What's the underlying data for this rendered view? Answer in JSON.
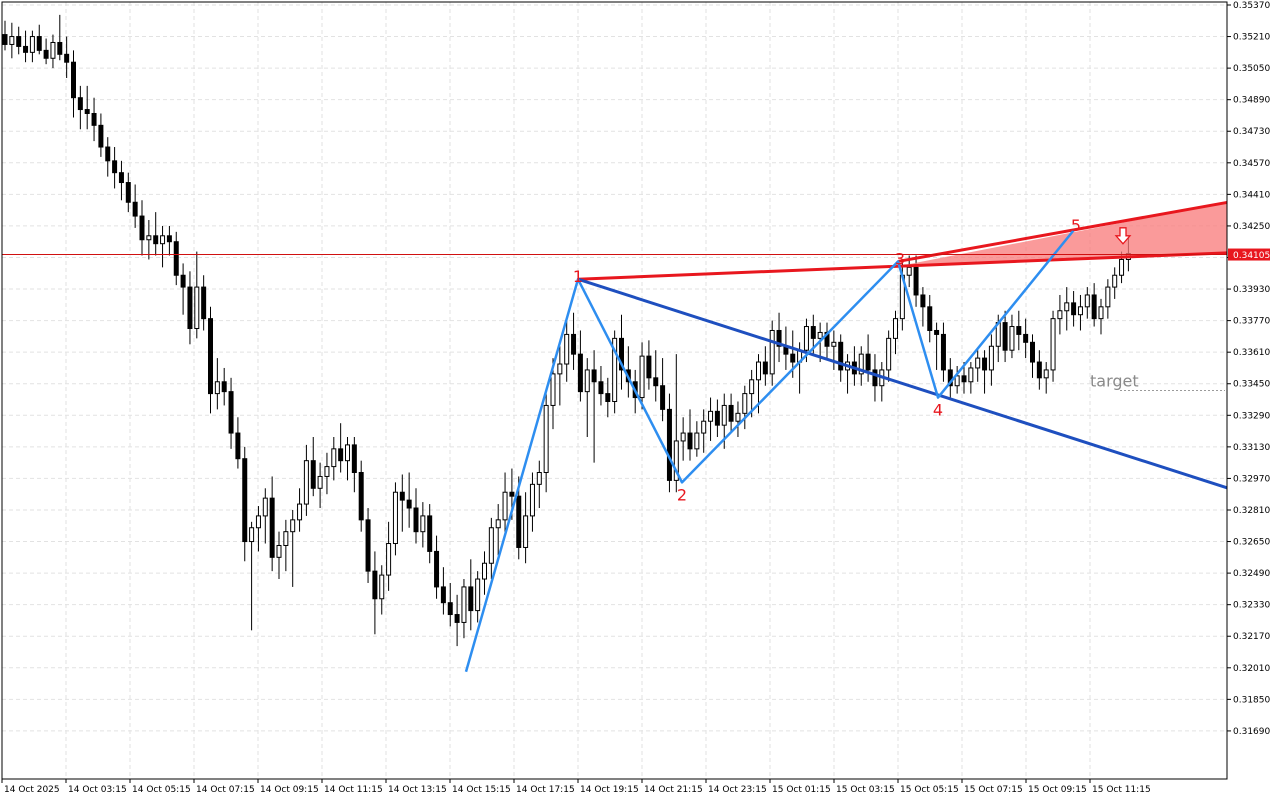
{
  "chart_data": {
    "type": "candlestick",
    "ylim": [
      0.3161,
      0.3537
    ],
    "y_ticks": [
      "0.35370",
      "0.35210",
      "0.35050",
      "0.34890",
      "0.34730",
      "0.34570",
      "0.34410",
      "0.34250",
      "0.34090",
      "0.33930",
      "0.33770",
      "0.33610",
      "0.33450",
      "0.33290",
      "0.33130",
      "0.32970",
      "0.32810",
      "0.32650",
      "0.32490",
      "0.32330",
      "0.32170",
      "0.32010",
      "0.31850",
      "0.31690"
    ],
    "x_ticks": [
      "14 Oct 2025",
      "14 Oct 03:15",
      "14 Oct 05:15",
      "14 Oct 07:15",
      "14 Oct 09:15",
      "14 Oct 11:15",
      "14 Oct 13:15",
      "14 Oct 15:15",
      "14 Oct 17:15",
      "14 Oct 19:15",
      "14 Oct 21:15",
      "14 Oct 23:15",
      "15 Oct 01:15",
      "15 Oct 03:15",
      "15 Oct 05:15",
      "15 Oct 07:15",
      "15 Oct 09:15",
      "15 Oct 11:15"
    ],
    "current_price": "0.34105",
    "grid": true,
    "pattern_points": [
      {
        "label": "",
        "x": "14 Oct 15:45",
        "y": 0.3199
      },
      {
        "label": "1",
        "x": "14 Oct 19:15",
        "y": 0.3398
      },
      {
        "label": "2",
        "x": "14 Oct 22:30",
        "y": 0.3295
      },
      {
        "label": "3",
        "x": "15 Oct 05:15",
        "y": 0.3407
      },
      {
        "label": "4",
        "x": "15 Oct 06:30",
        "y": 0.3338
      },
      {
        "label": "5",
        "x": "15 Oct 10:45",
        "y": 0.3423
      }
    ],
    "red_line": [
      {
        "x": "14 Oct 19:15",
        "y": 0.3398
      },
      {
        "x": "15 Oct 15:00",
        "y": 0.3411
      }
    ],
    "blue_line": [
      {
        "x": "14 Oct 19:15",
        "y": 0.3398
      },
      {
        "x": "15 Oct 15:00",
        "y": 0.3295
      }
    ],
    "target_label": "target",
    "target_level": 0.3338,
    "arrow": "down",
    "colors": {
      "zigzag": "#2e8ef0",
      "blue_line": "#1e4fbf",
      "red_line": "#e8171e",
      "red_zone": "#f87878",
      "price_line": "#d01010",
      "price_badge": "#e8171e",
      "label_text": "#e8171e",
      "target_text": "#8a8a8a",
      "grid": "#e2e2e2",
      "bull_fill": "#ffffff",
      "bear_fill": "#000000"
    },
    "candles": [
      [
        0.3522,
        0.3529,
        0.3514,
        0.3517
      ],
      [
        0.3517,
        0.3528,
        0.351,
        0.3521
      ],
      [
        0.3521,
        0.3526,
        0.3512,
        0.3516
      ],
      [
        0.3516,
        0.3524,
        0.3508,
        0.3513
      ],
      [
        0.3513,
        0.3524,
        0.3508,
        0.3521
      ],
      [
        0.3521,
        0.3527,
        0.3512,
        0.3514
      ],
      [
        0.3514,
        0.352,
        0.3507,
        0.351
      ],
      [
        0.351,
        0.3522,
        0.3505,
        0.3518
      ],
      [
        0.3518,
        0.3532,
        0.3509,
        0.3512
      ],
      [
        0.3512,
        0.3521,
        0.35,
        0.3508
      ],
      [
        0.3508,
        0.3514,
        0.348,
        0.349
      ],
      [
        0.349,
        0.3496,
        0.3474,
        0.3484
      ],
      [
        0.3484,
        0.3496,
        0.3474,
        0.3482
      ],
      [
        0.3482,
        0.349,
        0.3468,
        0.3476
      ],
      [
        0.3476,
        0.3482,
        0.346,
        0.3465
      ],
      [
        0.3465,
        0.347,
        0.345,
        0.3458
      ],
      [
        0.3458,
        0.3465,
        0.3444,
        0.3452
      ],
      [
        0.3452,
        0.3458,
        0.3438,
        0.3447
      ],
      [
        0.3447,
        0.3452,
        0.3432,
        0.3437
      ],
      [
        0.3437,
        0.3446,
        0.3424,
        0.343
      ],
      [
        0.343,
        0.3438,
        0.341,
        0.3418
      ],
      [
        0.3418,
        0.3428,
        0.3408,
        0.342
      ],
      [
        0.342,
        0.3432,
        0.341,
        0.3416
      ],
      [
        0.3416,
        0.3425,
        0.3404,
        0.342
      ],
      [
        0.342,
        0.3425,
        0.341,
        0.3417
      ],
      [
        0.3417,
        0.3422,
        0.3395,
        0.34
      ],
      [
        0.34,
        0.3406,
        0.338,
        0.3394
      ],
      [
        0.3394,
        0.3402,
        0.3365,
        0.3373
      ],
      [
        0.3373,
        0.3412,
        0.3368,
        0.3394
      ],
      [
        0.3394,
        0.34,
        0.3372,
        0.3378
      ],
      [
        0.3378,
        0.3384,
        0.333,
        0.334
      ],
      [
        0.334,
        0.3358,
        0.3332,
        0.3346
      ],
      [
        0.3346,
        0.3353,
        0.3334,
        0.3341
      ],
      [
        0.3341,
        0.3348,
        0.3312,
        0.332
      ],
      [
        0.332,
        0.3328,
        0.3302,
        0.3307
      ],
      [
        0.3307,
        0.3313,
        0.3255,
        0.3265
      ],
      [
        0.3265,
        0.3275,
        0.322,
        0.3272
      ],
      [
        0.3272,
        0.3283,
        0.326,
        0.3278
      ],
      [
        0.3278,
        0.3292,
        0.3264,
        0.3287
      ],
      [
        0.3287,
        0.3298,
        0.325,
        0.3257
      ],
      [
        0.3257,
        0.327,
        0.3246,
        0.3263
      ],
      [
        0.3263,
        0.3276,
        0.325,
        0.327
      ],
      [
        0.327,
        0.3281,
        0.3242,
        0.3276
      ],
      [
        0.3276,
        0.3292,
        0.327,
        0.3284
      ],
      [
        0.3284,
        0.3314,
        0.3278,
        0.3306
      ],
      [
        0.3306,
        0.3318,
        0.3288,
        0.3292
      ],
      [
        0.3292,
        0.3305,
        0.3282,
        0.3298
      ],
      [
        0.3298,
        0.331,
        0.3289,
        0.3303
      ],
      [
        0.3303,
        0.3318,
        0.3296,
        0.3312
      ],
      [
        0.3312,
        0.3325,
        0.33,
        0.3306
      ],
      [
        0.3306,
        0.3318,
        0.3296,
        0.3314
      ],
      [
        0.3314,
        0.3318,
        0.329,
        0.33
      ],
      [
        0.33,
        0.3306,
        0.327,
        0.3276
      ],
      [
        0.3276,
        0.3282,
        0.3244,
        0.325
      ],
      [
        0.325,
        0.326,
        0.3218,
        0.3236
      ],
      [
        0.3236,
        0.3253,
        0.3228,
        0.3248
      ],
      [
        0.3248,
        0.3275,
        0.324,
        0.3264
      ],
      [
        0.3264,
        0.3295,
        0.3258,
        0.329
      ],
      [
        0.329,
        0.3299,
        0.327,
        0.3286
      ],
      [
        0.3286,
        0.33,
        0.3272,
        0.3282
      ],
      [
        0.3282,
        0.3292,
        0.3264,
        0.327
      ],
      [
        0.327,
        0.3285,
        0.3262,
        0.3278
      ],
      [
        0.3278,
        0.3284,
        0.3254,
        0.326
      ],
      [
        0.326,
        0.3268,
        0.3236,
        0.3242
      ],
      [
        0.3242,
        0.3252,
        0.3228,
        0.3234
      ],
      [
        0.3234,
        0.3244,
        0.3222,
        0.3228
      ],
      [
        0.3228,
        0.3238,
        0.3212,
        0.3224
      ],
      [
        0.3224,
        0.3246,
        0.3216,
        0.3242
      ],
      [
        0.3242,
        0.3256,
        0.322,
        0.323
      ],
      [
        0.323,
        0.325,
        0.3224,
        0.3246
      ],
      [
        0.3246,
        0.326,
        0.3238,
        0.3254
      ],
      [
        0.3254,
        0.3277,
        0.3246,
        0.3272
      ],
      [
        0.3272,
        0.3284,
        0.3258,
        0.3276
      ],
      [
        0.3276,
        0.33,
        0.3268,
        0.329
      ],
      [
        0.329,
        0.3302,
        0.3276,
        0.3288
      ],
      [
        0.3288,
        0.3298,
        0.3256,
        0.3262
      ],
      [
        0.3262,
        0.329,
        0.3254,
        0.3278
      ],
      [
        0.3278,
        0.33,
        0.327,
        0.3294
      ],
      [
        0.3294,
        0.3306,
        0.3282,
        0.33
      ],
      [
        0.33,
        0.334,
        0.329,
        0.3334
      ],
      [
        0.3334,
        0.3358,
        0.3322,
        0.335
      ],
      [
        0.335,
        0.3364,
        0.3334,
        0.3355
      ],
      [
        0.3355,
        0.3377,
        0.3346,
        0.337
      ],
      [
        0.337,
        0.3381,
        0.3352,
        0.336
      ],
      [
        0.336,
        0.3372,
        0.3336,
        0.3341
      ],
      [
        0.3341,
        0.3358,
        0.3318,
        0.3352
      ],
      [
        0.3352,
        0.3362,
        0.3305,
        0.3346
      ],
      [
        0.3346,
        0.3354,
        0.3334,
        0.334
      ],
      [
        0.334,
        0.3348,
        0.3328,
        0.3336
      ],
      [
        0.3336,
        0.3372,
        0.333,
        0.3368
      ],
      [
        0.3368,
        0.338,
        0.3342,
        0.3352
      ],
      [
        0.3352,
        0.3364,
        0.3338,
        0.3346
      ],
      [
        0.3346,
        0.3352,
        0.333,
        0.3338
      ],
      [
        0.3338,
        0.3366,
        0.3332,
        0.3359
      ],
      [
        0.3359,
        0.3367,
        0.3342,
        0.3348
      ],
      [
        0.3348,
        0.3362,
        0.3336,
        0.3344
      ],
      [
        0.3344,
        0.3358,
        0.3326,
        0.3332
      ],
      [
        0.3332,
        0.334,
        0.329,
        0.3296
      ],
      [
        0.3296,
        0.336,
        0.329,
        0.3316
      ],
      [
        0.3316,
        0.3328,
        0.3306,
        0.332
      ],
      [
        0.332,
        0.3332,
        0.3306,
        0.3312
      ],
      [
        0.3312,
        0.3326,
        0.3308,
        0.332
      ],
      [
        0.332,
        0.3332,
        0.331,
        0.3326
      ],
      [
        0.3326,
        0.3338,
        0.3316,
        0.3331
      ],
      [
        0.3331,
        0.3337,
        0.3318,
        0.3324
      ],
      [
        0.3324,
        0.334,
        0.3312,
        0.3334
      ],
      [
        0.3334,
        0.334,
        0.332,
        0.3326
      ],
      [
        0.3326,
        0.3336,
        0.3318,
        0.333
      ],
      [
        0.333,
        0.3344,
        0.3322,
        0.334
      ],
      [
        0.334,
        0.3352,
        0.3328,
        0.3347
      ],
      [
        0.3347,
        0.336,
        0.333,
        0.3356
      ],
      [
        0.3356,
        0.3364,
        0.3344,
        0.335
      ],
      [
        0.335,
        0.3377,
        0.3344,
        0.3372
      ],
      [
        0.3372,
        0.3381,
        0.3356,
        0.3364
      ],
      [
        0.3364,
        0.3374,
        0.3352,
        0.336
      ],
      [
        0.336,
        0.3372,
        0.3348,
        0.3356
      ],
      [
        0.3356,
        0.3366,
        0.334,
        0.3362
      ],
      [
        0.3362,
        0.3378,
        0.3356,
        0.3374
      ],
      [
        0.3374,
        0.338,
        0.336,
        0.3368
      ],
      [
        0.3368,
        0.3376,
        0.3356,
        0.3371
      ],
      [
        0.3371,
        0.3376,
        0.3358,
        0.3364
      ],
      [
        0.3364,
        0.3372,
        0.3352,
        0.3366
      ],
      [
        0.3366,
        0.337,
        0.3346,
        0.3352
      ],
      [
        0.3352,
        0.336,
        0.334,
        0.3356
      ],
      [
        0.3356,
        0.3364,
        0.3344,
        0.335
      ],
      [
        0.335,
        0.3364,
        0.3344,
        0.336
      ],
      [
        0.336,
        0.337,
        0.3346,
        0.3352
      ],
      [
        0.3352,
        0.336,
        0.3336,
        0.3344
      ],
      [
        0.3344,
        0.3356,
        0.3336,
        0.3352
      ],
      [
        0.3352,
        0.3372,
        0.3346,
        0.3368
      ],
      [
        0.3368,
        0.3382,
        0.336,
        0.3378
      ],
      [
        0.3378,
        0.3408,
        0.3372,
        0.34
      ],
      [
        0.34,
        0.341,
        0.3394,
        0.3404
      ],
      [
        0.3404,
        0.341,
        0.3384,
        0.339
      ],
      [
        0.339,
        0.3394,
        0.3374,
        0.3384
      ],
      [
        0.3384,
        0.339,
        0.3366,
        0.3372
      ],
      [
        0.3372,
        0.3376,
        0.3352,
        0.337
      ],
      [
        0.337,
        0.3376,
        0.3346,
        0.3352
      ],
      [
        0.3352,
        0.3358,
        0.3338,
        0.3344
      ],
      [
        0.3344,
        0.3354,
        0.334,
        0.3349
      ],
      [
        0.3349,
        0.3356,
        0.334,
        0.3346
      ],
      [
        0.3346,
        0.3356,
        0.334,
        0.3353
      ],
      [
        0.3353,
        0.3362,
        0.3346,
        0.3358
      ],
      [
        0.3358,
        0.3362,
        0.334,
        0.3352
      ],
      [
        0.3352,
        0.337,
        0.3344,
        0.3364
      ],
      [
        0.3364,
        0.338,
        0.3356,
        0.3376
      ],
      [
        0.3376,
        0.3382,
        0.3356,
        0.3362
      ],
      [
        0.3362,
        0.338,
        0.3358,
        0.3374
      ],
      [
        0.3374,
        0.3382,
        0.3362,
        0.337
      ],
      [
        0.337,
        0.3378,
        0.3358,
        0.3366
      ],
      [
        0.3366,
        0.337,
        0.3348,
        0.3356
      ],
      [
        0.3356,
        0.3362,
        0.3342,
        0.3348
      ],
      [
        0.3348,
        0.3356,
        0.334,
        0.3352
      ],
      [
        0.3352,
        0.3382,
        0.3346,
        0.3378
      ],
      [
        0.3378,
        0.339,
        0.337,
        0.3382
      ],
      [
        0.3382,
        0.3394,
        0.3372,
        0.3386
      ],
      [
        0.3386,
        0.3392,
        0.3374,
        0.338
      ],
      [
        0.338,
        0.339,
        0.3372,
        0.3384
      ],
      [
        0.3384,
        0.3394,
        0.3378,
        0.339
      ],
      [
        0.339,
        0.3396,
        0.3374,
        0.3378
      ],
      [
        0.3378,
        0.3388,
        0.337,
        0.3384
      ],
      [
        0.3384,
        0.3398,
        0.3378,
        0.3394
      ],
      [
        0.3394,
        0.3404,
        0.3388,
        0.34
      ],
      [
        0.34,
        0.3412,
        0.3396,
        0.3408
      ],
      [
        0.3408,
        0.342,
        0.3402,
        0.3411
      ]
    ]
  }
}
